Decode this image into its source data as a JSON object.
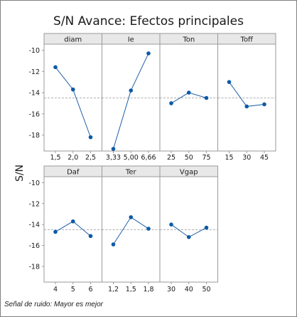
{
  "title": "S/N Avance: Efectos principales",
  "ylabel": "S/N",
  "note": "Señal de ruido: Mayor es mejor",
  "colors": {
    "series": "#1f5fa8",
    "point": "#0b5aa7",
    "mean_line": "#b0b0b0",
    "frame": "#9a9a9a",
    "header_bg": "#e8e8e8"
  },
  "chart_data": {
    "type": "line",
    "title": "S/N Avance: Efectos principales",
    "ylabel": "S/N",
    "ylim": [
      -19.5,
      -9.7
    ],
    "yticks": [
      -10,
      -12,
      -14,
      -16,
      -18
    ],
    "ytick_labels": [
      "-10",
      "-12",
      "-14",
      "-16",
      "-18"
    ],
    "mean_line": -14.5,
    "grid": false,
    "panels": [
      {
        "factor": "diam",
        "levels": [
          "1,5",
          "2,0",
          "2,5"
        ],
        "values": [
          -11.6,
          -13.7,
          -18.2
        ]
      },
      {
        "factor": "Ie",
        "levels": [
          "3,33",
          "5,00",
          "6,66"
        ],
        "values": [
          -19.3,
          -13.8,
          -10.3
        ]
      },
      {
        "factor": "Ton",
        "levels": [
          "25",
          "50",
          "75"
        ],
        "values": [
          -15.0,
          -14.0,
          -14.5
        ]
      },
      {
        "factor": "Toff",
        "levels": [
          "15",
          "30",
          "45"
        ],
        "values": [
          -13.0,
          -15.3,
          -15.1
        ]
      },
      {
        "factor": "Daf",
        "levels": [
          "4",
          "5",
          "6"
        ],
        "values": [
          -14.7,
          -13.7,
          -15.1
        ]
      },
      {
        "factor": "Ter",
        "levels": [
          "1,2",
          "1,5",
          "1,8"
        ],
        "values": [
          -15.9,
          -13.3,
          -14.4
        ]
      },
      {
        "factor": "Vgap",
        "levels": [
          "30",
          "40",
          "50"
        ],
        "values": [
          -14.0,
          -15.2,
          -14.3
        ]
      }
    ]
  }
}
